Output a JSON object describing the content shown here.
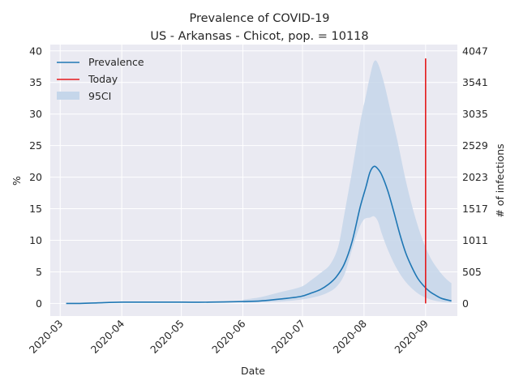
{
  "chart_data": {
    "type": "line",
    "title": "Prevalence of COVID-19",
    "subtitle": "US - Arkansas - Chicot, pop. = 10118",
    "xlabel": "Date",
    "ylabel": "%",
    "y2label": "# of infections",
    "ylim": [
      -2,
      41
    ],
    "yticks": [
      0,
      5,
      10,
      15,
      20,
      25,
      30,
      35,
      40
    ],
    "y2ticks": [
      0,
      505,
      1011,
      1517,
      2023,
      2529,
      3035,
      3541,
      4047
    ],
    "xlim": [
      "2020-02-25",
      "2020-09-17"
    ],
    "xticks": [
      "2020-03",
      "2020-04",
      "2020-05",
      "2020-06",
      "2020-07",
      "2020-08",
      "2020-09"
    ],
    "xtick_dates": [
      "2020-03-01",
      "2020-04-01",
      "2020-05-01",
      "2020-06-01",
      "2020-07-01",
      "2020-08-01",
      "2020-09-01"
    ],
    "grid": true,
    "legend_position": "top-left",
    "legend": [
      "Prevalence",
      "Today",
      "95CI"
    ],
    "colors": {
      "prevalence": "#1f77b4",
      "today": "#e41a1c",
      "ci": "#c5d6ea",
      "background": "#eaeaf2",
      "grid": "#ffffff"
    },
    "today": {
      "date": "2020-09-01",
      "y_top": 38.8
    },
    "series": [
      {
        "name": "Prevalence",
        "points": [
          [
            "2020-03-04",
            0.0
          ],
          [
            "2020-03-10",
            0.0
          ],
          [
            "2020-03-20",
            0.1
          ],
          [
            "2020-04-01",
            0.2
          ],
          [
            "2020-04-15",
            0.2
          ],
          [
            "2020-05-01",
            0.2
          ],
          [
            "2020-05-15",
            0.2
          ],
          [
            "2020-06-01",
            0.3
          ],
          [
            "2020-06-10",
            0.4
          ],
          [
            "2020-06-20",
            0.7
          ],
          [
            "2020-06-30",
            1.1
          ],
          [
            "2020-07-05",
            1.6
          ],
          [
            "2020-07-10",
            2.2
          ],
          [
            "2020-07-14",
            3.0
          ],
          [
            "2020-07-18",
            4.2
          ],
          [
            "2020-07-22",
            6.2
          ],
          [
            "2020-07-26",
            9.8
          ],
          [
            "2020-07-30",
            15.2
          ],
          [
            "2020-08-02",
            18.5
          ],
          [
            "2020-08-04",
            20.8
          ],
          [
            "2020-08-06",
            21.7
          ],
          [
            "2020-08-08",
            21.3
          ],
          [
            "2020-08-10",
            20.3
          ],
          [
            "2020-08-13",
            17.8
          ],
          [
            "2020-08-16",
            14.5
          ],
          [
            "2020-08-19",
            11.0
          ],
          [
            "2020-08-22",
            8.0
          ],
          [
            "2020-08-25",
            5.8
          ],
          [
            "2020-08-28",
            4.0
          ],
          [
            "2020-08-31",
            2.8
          ],
          [
            "2020-09-03",
            1.9
          ],
          [
            "2020-09-06",
            1.3
          ],
          [
            "2020-09-09",
            0.8
          ],
          [
            "2020-09-14",
            0.4
          ]
        ]
      }
    ],
    "ci": {
      "name": "95CI",
      "upper": [
        [
          "2020-06-01",
          0.6
        ],
        [
          "2020-06-10",
          1.0
        ],
        [
          "2020-06-20",
          1.8
        ],
        [
          "2020-06-30",
          2.6
        ],
        [
          "2020-07-05",
          3.6
        ],
        [
          "2020-07-10",
          4.8
        ],
        [
          "2020-07-15",
          6.2
        ],
        [
          "2020-07-19",
          9.0
        ],
        [
          "2020-07-22",
          14.0
        ],
        [
          "2020-07-26",
          21.0
        ],
        [
          "2020-07-30",
          28.5
        ],
        [
          "2020-08-02",
          33.0
        ],
        [
          "2020-08-04",
          36.0
        ],
        [
          "2020-08-06",
          38.3
        ],
        [
          "2020-08-08",
          38.0
        ],
        [
          "2020-08-11",
          35.0
        ],
        [
          "2020-08-14",
          31.0
        ],
        [
          "2020-08-18",
          25.5
        ],
        [
          "2020-08-22",
          19.5
        ],
        [
          "2020-08-26",
          14.5
        ],
        [
          "2020-08-30",
          10.5
        ],
        [
          "2020-09-03",
          7.5
        ],
        [
          "2020-09-07",
          5.5
        ],
        [
          "2020-09-11",
          4.0
        ],
        [
          "2020-09-14",
          3.2
        ]
      ],
      "lower": [
        [
          "2020-09-14",
          0.1
        ],
        [
          "2020-09-10",
          0.2
        ],
        [
          "2020-09-06",
          0.4
        ],
        [
          "2020-09-02",
          0.8
        ],
        [
          "2020-08-29",
          1.4
        ],
        [
          "2020-08-25",
          2.4
        ],
        [
          "2020-08-21",
          3.8
        ],
        [
          "2020-08-17",
          5.8
        ],
        [
          "2020-08-13",
          8.5
        ],
        [
          "2020-08-10",
          11.0
        ],
        [
          "2020-08-08",
          13.0
        ],
        [
          "2020-08-06",
          13.8
        ],
        [
          "2020-08-04",
          13.6
        ],
        [
          "2020-08-01",
          13.3
        ],
        [
          "2020-07-29",
          11.5
        ],
        [
          "2020-07-25",
          7.5
        ],
        [
          "2020-07-22",
          4.5
        ],
        [
          "2020-07-18",
          2.6
        ],
        [
          "2020-07-13",
          1.6
        ],
        [
          "2020-07-07",
          1.0
        ],
        [
          "2020-06-30",
          0.6
        ],
        [
          "2020-06-20",
          0.3
        ],
        [
          "2020-06-10",
          0.2
        ],
        [
          "2020-06-01",
          0.1
        ]
      ]
    }
  }
}
